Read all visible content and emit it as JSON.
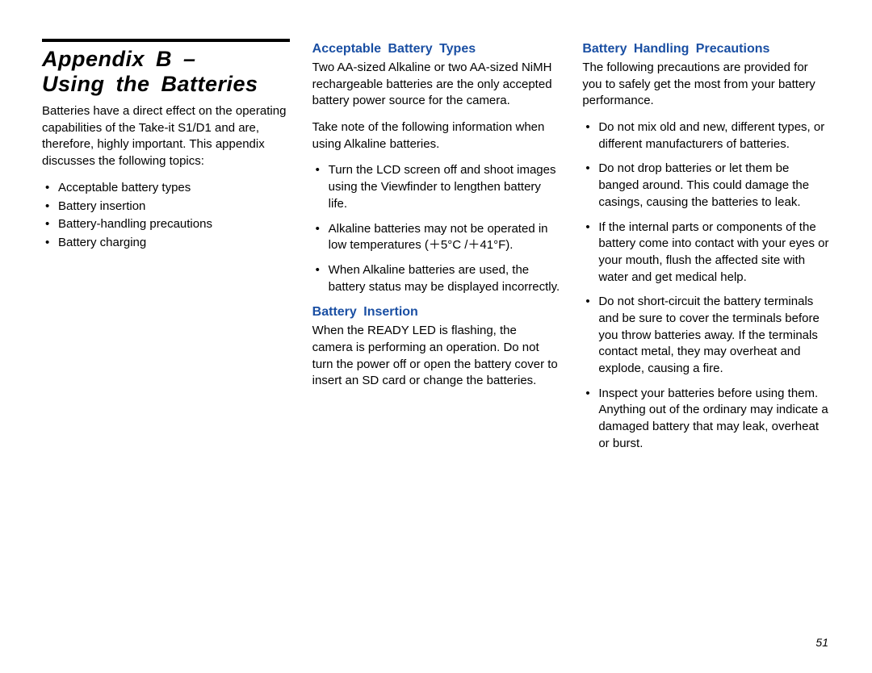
{
  "colors": {
    "heading_blue": "#1a4fa3",
    "text": "#000000",
    "background": "#ffffff"
  },
  "page_number": "51",
  "col1": {
    "title_line1": "Appendix B –",
    "title_line2": "Using the Batteries",
    "intro": "Batteries have a direct effect on the operating capabilities of the Take-it S1/D1 and are, therefore, highly important. This appendix discusses the following topics:",
    "topics": [
      "Acceptable battery types",
      "Battery insertion",
      "Battery-handling precautions",
      "Battery charging"
    ]
  },
  "col2": {
    "h_acceptable": "Acceptable Battery Types",
    "acceptable_p1": "Two AA-sized Alkaline or two AA-sized NiMH rechargeable batteries are the only accepted battery power source for the camera.",
    "acceptable_p2": "Take note of the following information when using Alkaline batteries.",
    "acceptable_list": [
      "Turn the LCD screen off and shoot images using the Viewfinder to lengthen battery life.",
      "Alkaline batteries may not be operated in low temperatures (＋5°C /＋41°F).",
      "When Alkaline batteries are used, the battery status may be displayed incorrectly."
    ],
    "h_insertion": "Battery Insertion",
    "insertion_p": "When the READY LED is flashing, the camera is performing an operation. Do not turn the power off or open the battery cover to insert an SD card or change the batteries."
  },
  "col3": {
    "h_precautions": "Battery Handling Precautions",
    "precautions_p": "The following precautions are provided for you to safely get the most from your battery performance.",
    "precautions_list": [
      "Do not mix old and new, different types, or different manufacturers of batteries.",
      "Do not drop batteries or let them be banged around. This could damage the casings, causing the batteries to leak.",
      "If the internal parts or components of the battery come into contact with your eyes or your mouth, flush the affected site with water and get medical help.",
      "Do not short-circuit the battery terminals and be sure to cover the terminals before you throw batteries away. If the terminals contact metal, they may overheat and explode, causing a fire.",
      "Inspect your batteries before using them. Anything out of the ordinary may indicate a damaged battery that may leak, overheat or burst."
    ]
  }
}
